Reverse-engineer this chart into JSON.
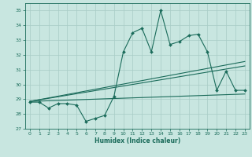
{
  "title": "",
  "xlabel": "Humidex (Indice chaleur)",
  "xlim": [
    -0.5,
    23.5
  ],
  "ylim": [
    27,
    35.5
  ],
  "yticks": [
    27,
    28,
    29,
    30,
    31,
    32,
    33,
    34,
    35
  ],
  "xticks": [
    0,
    1,
    2,
    3,
    4,
    5,
    6,
    7,
    8,
    9,
    10,
    11,
    12,
    13,
    14,
    15,
    16,
    17,
    18,
    19,
    20,
    21,
    22,
    23
  ],
  "bg_color": "#c8e6e0",
  "grid_color": "#a8ccc6",
  "line_color": "#1a6b5a",
  "main_y": [
    28.8,
    28.8,
    28.4,
    28.7,
    28.7,
    28.6,
    27.5,
    27.7,
    27.9,
    29.2,
    32.2,
    33.5,
    33.8,
    32.2,
    35.0,
    32.7,
    32.9,
    33.3,
    33.4,
    32.2,
    29.6,
    30.9,
    29.6,
    29.6
  ],
  "trend1_x": [
    0,
    23
  ],
  "trend1_y": [
    28.85,
    31.55
  ],
  "trend2_x": [
    0,
    23
  ],
  "trend2_y": [
    28.85,
    31.25
  ],
  "trend3_x": [
    0,
    23
  ],
  "trend3_y": [
    28.85,
    29.35
  ]
}
